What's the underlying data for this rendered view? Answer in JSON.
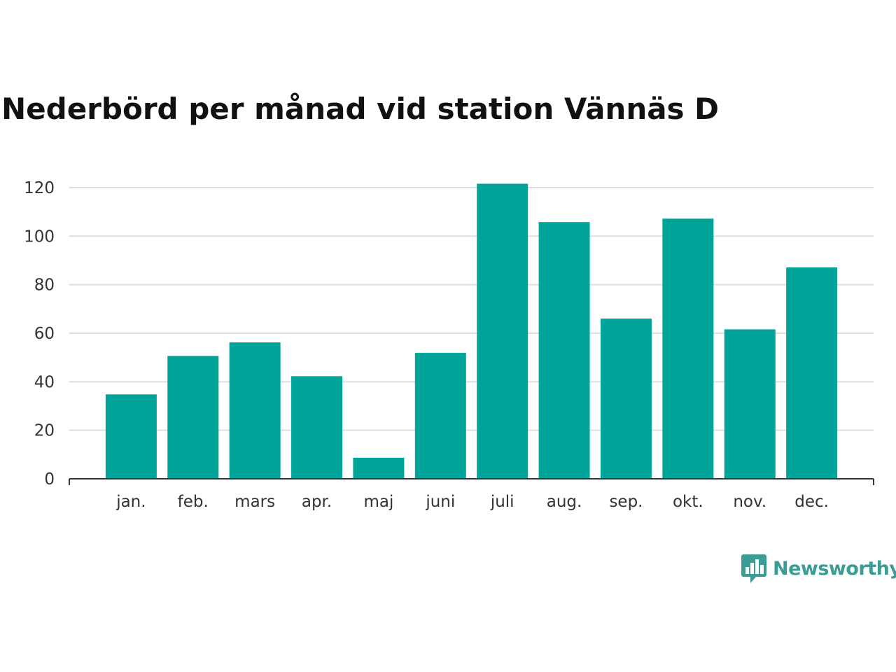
{
  "colors": {
    "bar": "#00a499",
    "grid": "#dedede",
    "axis": "#333333",
    "title": "#111111",
    "brand": "#3a9c94"
  },
  "chart_data": {
    "type": "bar",
    "title": "Nederbörd per månad vid station Vännäs D",
    "xlabel": "",
    "ylabel": "",
    "categories": [
      "jan.",
      "feb.",
      "mars",
      "apr.",
      "maj",
      "juni",
      "juli",
      "aug.",
      "sep.",
      "okt.",
      "nov.",
      "dec."
    ],
    "values": [
      34.8,
      50.6,
      56.2,
      42.3,
      8.7,
      51.9,
      121.6,
      105.8,
      66.0,
      107.2,
      61.6,
      87.1
    ],
    "ylim": [
      0,
      120
    ],
    "yticks": [
      0,
      20,
      40,
      60,
      80,
      100,
      120
    ],
    "grid": true,
    "legend": "none"
  },
  "brand": {
    "name": "Newsworthy",
    "icon": "bar-chart-speech-bubble-icon"
  }
}
